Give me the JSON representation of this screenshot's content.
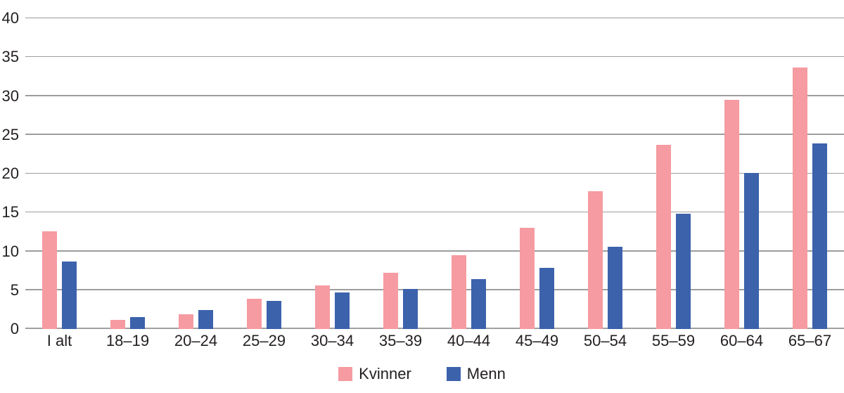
{
  "chart_data": {
    "type": "bar",
    "title": "",
    "xlabel": "",
    "ylabel": "",
    "categories": [
      "I alt",
      "18–19",
      "20–24",
      "25–29",
      "30–34",
      "35–39",
      "40–44",
      "45–49",
      "50–54",
      "55–59",
      "60–64",
      "65–67"
    ],
    "series": [
      {
        "name": "Kvinner",
        "color": "#f59ba1",
        "values": [
          12.6,
          1.2,
          1.9,
          3.9,
          5.6,
          7.2,
          9.5,
          13.0,
          17.7,
          23.7,
          29.5,
          33.7
        ]
      },
      {
        "name": "Menn",
        "color": "#3c62ac",
        "values": [
          8.7,
          1.5,
          2.4,
          3.6,
          4.7,
          5.2,
          6.4,
          7.9,
          10.6,
          14.8,
          20.1,
          23.9
        ]
      }
    ],
    "ylim": [
      0,
      40
    ],
    "yticks": [
      0,
      5,
      10,
      15,
      20,
      25,
      30,
      35,
      40
    ],
    "grid": true,
    "legend_position": "bottom"
  },
  "colors": {
    "gridline": "#9d9d9d",
    "axis": "#a0a0a0",
    "text": "#231f20",
    "background": "#ffffff"
  }
}
